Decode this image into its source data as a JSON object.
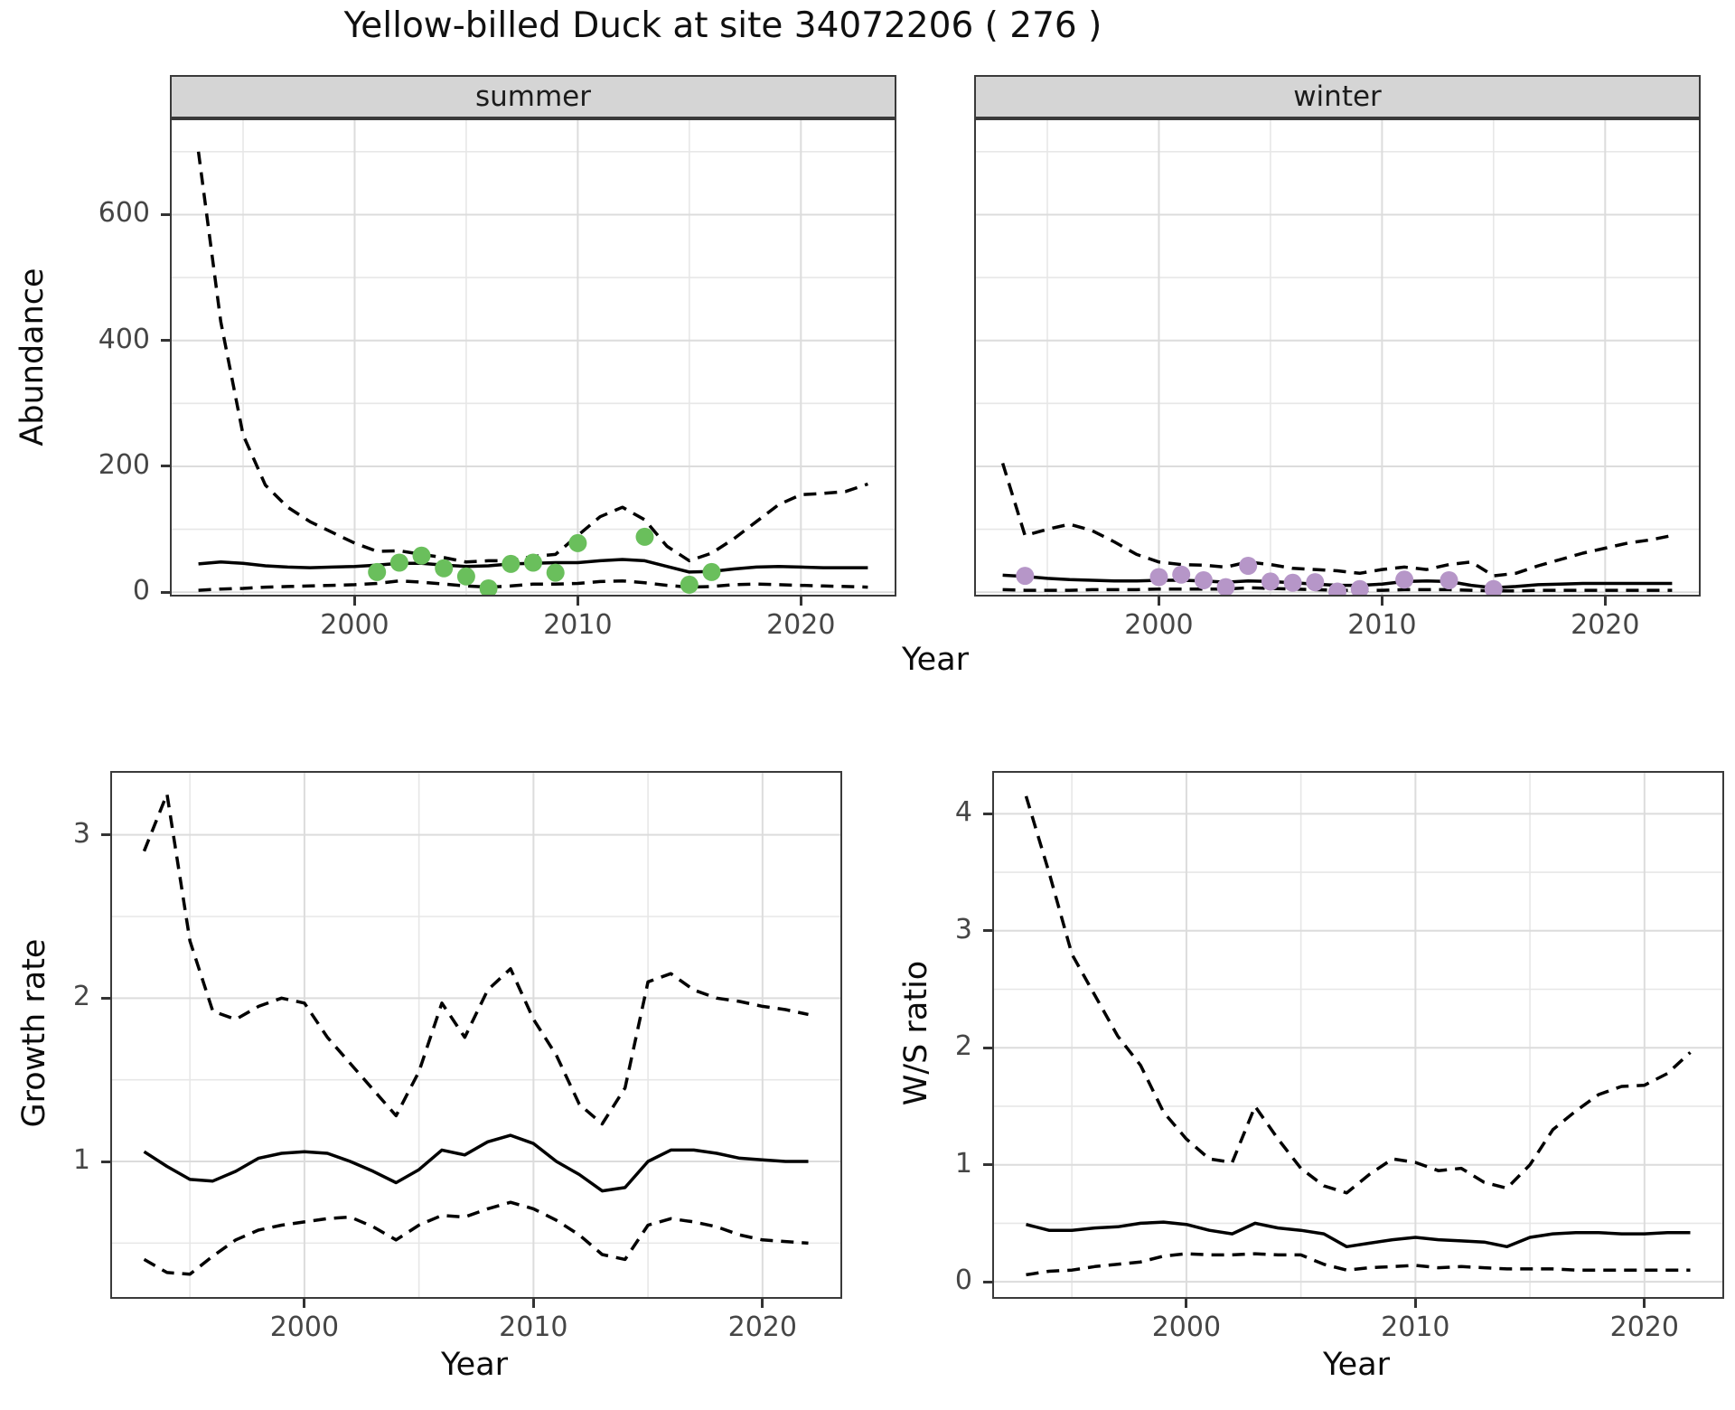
{
  "title": "Yellow-billed Duck at site 34072206 ( 276 )",
  "ui": {
    "facets": [
      "summer",
      "winter"
    ],
    "ylab_top": "Abundance",
    "xlab": "Year",
    "ylab_growth": "Growth rate",
    "ylab_ws": "W/S ratio"
  },
  "colors": {
    "line": "#000000",
    "summer_point": "#6abf5c",
    "winter_point": "#b696c8",
    "strip_bg": "#d5d5d5",
    "grid_major": "#dcdcdc",
    "grid_minor": "#e7e7e7",
    "tick_text": "#464646",
    "panel_border": "#3a3a3a"
  },
  "chart_data": [
    {
      "key": "summer",
      "type": "line",
      "panel_title": "summer",
      "xlabel": "Year",
      "ylabel": "Abundance",
      "x_domain": [
        1991.8,
        2024.2
      ],
      "y_domain": [
        -4,
        750
      ],
      "x_major_ticks": [
        2000,
        2010,
        2020
      ],
      "x_minor_ticks": [
        1995,
        2005,
        2015
      ],
      "y_major_ticks": [
        0,
        200,
        400,
        600
      ],
      "y_minor_ticks": [
        100,
        300,
        500,
        700
      ],
      "show_y_tick_labels": true,
      "x": [
        1993,
        1994,
        1995,
        1996,
        1997,
        1998,
        1999,
        2000,
        2001,
        2002,
        2003,
        2004,
        2005,
        2006,
        2007,
        2008,
        2009,
        2010,
        2011,
        2012,
        2013,
        2014,
        2015,
        2016,
        2017,
        2018,
        2019,
        2020,
        2021,
        2022,
        2023
      ],
      "series": [
        {
          "name": "upper_ci",
          "style": "dashed",
          "values": [
            700,
            430,
            250,
            170,
            135,
            112,
            95,
            78,
            65,
            66,
            60,
            55,
            48,
            50,
            50,
            57,
            60,
            90,
            120,
            135,
            115,
            73,
            50,
            62,
            85,
            112,
            139,
            155,
            157,
            160,
            172
          ]
        },
        {
          "name": "median",
          "style": "solid",
          "values": [
            45,
            48,
            46,
            42,
            40,
            39,
            40,
            41,
            43,
            46,
            46,
            43,
            41,
            42,
            45,
            46,
            47,
            47,
            50,
            52,
            50,
            41,
            32,
            33,
            37,
            40,
            41,
            40,
            39,
            39,
            39
          ]
        },
        {
          "name": "lower_ci",
          "style": "dashed",
          "values": [
            3,
            5,
            6,
            8,
            9,
            10,
            11,
            12,
            14,
            18,
            16,
            13,
            10,
            8,
            10,
            13,
            13,
            14,
            17,
            18,
            15,
            11,
            8,
            9,
            12,
            13,
            12,
            11,
            10,
            9,
            8
          ]
        }
      ],
      "points": {
        "name": "summer-observations",
        "color": "#6abf5c",
        "data": [
          [
            2001,
            32
          ],
          [
            2002,
            47
          ],
          [
            2003,
            58
          ],
          [
            2004,
            38
          ],
          [
            2005,
            25
          ],
          [
            2006,
            6
          ],
          [
            2007,
            45
          ],
          [
            2008,
            47
          ],
          [
            2009,
            31
          ],
          [
            2010,
            78
          ],
          [
            2013,
            88
          ],
          [
            2015,
            12
          ],
          [
            2016,
            32
          ]
        ]
      }
    },
    {
      "key": "winter",
      "type": "line",
      "panel_title": "winter",
      "xlabel": "Year",
      "ylabel": "Abundance",
      "x_domain": [
        1991.8,
        2024.2
      ],
      "y_domain": [
        -4,
        750
      ],
      "x_major_ticks": [
        2000,
        2010,
        2020
      ],
      "x_minor_ticks": [
        1995,
        2005,
        2015
      ],
      "y_major_ticks": [
        0,
        200,
        400,
        600
      ],
      "y_minor_ticks": [
        100,
        300,
        500,
        700
      ],
      "show_y_tick_labels": false,
      "x": [
        1993,
        1994,
        1995,
        1996,
        1997,
        1998,
        1999,
        2000,
        2001,
        2002,
        2003,
        2004,
        2005,
        2006,
        2007,
        2008,
        2009,
        2010,
        2011,
        2012,
        2013,
        2014,
        2015,
        2016,
        2017,
        2018,
        2019,
        2020,
        2021,
        2022,
        2023
      ],
      "series": [
        {
          "name": "upper_ci",
          "style": "dashed",
          "values": [
            205,
            90,
            100,
            108,
            98,
            80,
            60,
            48,
            44,
            43,
            40,
            48,
            44,
            38,
            36,
            34,
            30,
            36,
            40,
            36,
            44,
            48,
            26,
            30,
            42,
            52,
            62,
            70,
            78,
            83,
            90
          ]
        },
        {
          "name": "median",
          "style": "solid",
          "values": [
            27,
            25,
            22,
            20,
            19,
            18,
            18,
            19,
            19,
            18,
            16,
            18,
            17,
            15,
            13,
            11,
            11,
            13,
            17,
            18,
            17,
            11,
            7,
            9,
            12,
            13,
            14,
            14,
            14,
            14,
            14
          ]
        },
        {
          "name": "lower_ci",
          "style": "dashed",
          "values": [
            4,
            3,
            3,
            3,
            4,
            4,
            4,
            5,
            5,
            5,
            5,
            7,
            6,
            5,
            4,
            3,
            3,
            3,
            4,
            4,
            4,
            3,
            2,
            2,
            3,
            3,
            3,
            3,
            3,
            3,
            3
          ]
        }
      ],
      "points": {
        "name": "winter-observations",
        "color": "#b696c8",
        "data": [
          [
            1994,
            26
          ],
          [
            2000,
            24
          ],
          [
            2001,
            28
          ],
          [
            2002,
            19
          ],
          [
            2003,
            8
          ],
          [
            2004,
            42
          ],
          [
            2005,
            17
          ],
          [
            2006,
            15
          ],
          [
            2007,
            16
          ],
          [
            2008,
            1
          ],
          [
            2009,
            5
          ],
          [
            2011,
            20
          ],
          [
            2013,
            19
          ],
          [
            2015,
            5
          ]
        ]
      }
    },
    {
      "key": "growth",
      "type": "line",
      "panel_title": "",
      "xlabel": "Year",
      "ylabel": "Growth rate",
      "x_domain": [
        1991.6,
        2023.4
      ],
      "y_domain": [
        0.17,
        3.38
      ],
      "x_major_ticks": [
        2000,
        2010,
        2020
      ],
      "x_minor_ticks": [
        1995,
        2005,
        2015
      ],
      "y_major_ticks": [
        1,
        2,
        3
      ],
      "y_minor_ticks": [
        0.5,
        1.5,
        2.5
      ],
      "show_y_tick_labels": true,
      "x": [
        1993,
        1994,
        1995,
        1996,
        1997,
        1998,
        1999,
        2000,
        2001,
        2002,
        2003,
        2004,
        2005,
        2006,
        2007,
        2008,
        2009,
        2010,
        2011,
        2012,
        2013,
        2014,
        2015,
        2016,
        2017,
        2018,
        2019,
        2020,
        2021,
        2022
      ],
      "series": [
        {
          "name": "upper_ci",
          "style": "dashed",
          "values": [
            2.9,
            3.25,
            2.35,
            1.92,
            1.87,
            1.95,
            2.0,
            1.97,
            1.76,
            1.6,
            1.44,
            1.28,
            1.55,
            1.97,
            1.76,
            2.05,
            2.18,
            1.87,
            1.65,
            1.35,
            1.23,
            1.45,
            2.1,
            2.15,
            2.05,
            2.0,
            1.98,
            1.95,
            1.93,
            1.9
          ]
        },
        {
          "name": "median",
          "style": "solid",
          "values": [
            1.06,
            0.97,
            0.89,
            0.88,
            0.94,
            1.02,
            1.05,
            1.06,
            1.05,
            1.0,
            0.94,
            0.87,
            0.95,
            1.07,
            1.04,
            1.12,
            1.16,
            1.11,
            1.0,
            0.92,
            0.82,
            0.84,
            1.0,
            1.07,
            1.07,
            1.05,
            1.02,
            1.01,
            1.0,
            1.0
          ]
        },
        {
          "name": "lower_ci",
          "style": "dashed",
          "values": [
            0.4,
            0.32,
            0.31,
            0.42,
            0.52,
            0.58,
            0.61,
            0.63,
            0.65,
            0.66,
            0.6,
            0.52,
            0.61,
            0.67,
            0.66,
            0.71,
            0.75,
            0.71,
            0.64,
            0.55,
            0.43,
            0.4,
            0.61,
            0.65,
            0.63,
            0.6,
            0.55,
            0.52,
            0.51,
            0.5
          ]
        }
      ],
      "points": null
    },
    {
      "key": "ws",
      "type": "line",
      "panel_title": "",
      "xlabel": "Year",
      "ylabel": "W/S ratio",
      "x_domain": [
        1991.6,
        2023.4
      ],
      "y_domain": [
        -0.13,
        4.35
      ],
      "x_major_ticks": [
        2000,
        2010,
        2020
      ],
      "x_minor_ticks": [
        1995,
        2005,
        2015
      ],
      "y_major_ticks": [
        0,
        1,
        2,
        3,
        4
      ],
      "y_minor_ticks": [
        0.5,
        1.5,
        2.5,
        3.5
      ],
      "show_y_tick_labels": true,
      "x": [
        1993,
        1994,
        1995,
        1996,
        1997,
        1998,
        1999,
        2000,
        2001,
        2002,
        2003,
        2004,
        2005,
        2006,
        2007,
        2008,
        2009,
        2010,
        2011,
        2012,
        2013,
        2014,
        2015,
        2016,
        2017,
        2018,
        2019,
        2020,
        2021,
        2022
      ],
      "series": [
        {
          "name": "upper_ci",
          "style": "dashed",
          "values": [
            4.15,
            3.5,
            2.8,
            2.45,
            2.1,
            1.85,
            1.45,
            1.22,
            1.05,
            1.02,
            1.5,
            1.22,
            0.97,
            0.82,
            0.76,
            0.92,
            1.05,
            1.02,
            0.95,
            0.97,
            0.85,
            0.8,
            1.0,
            1.3,
            1.46,
            1.6,
            1.67,
            1.68,
            1.78,
            1.96
          ]
        },
        {
          "name": "median",
          "style": "solid",
          "values": [
            0.49,
            0.44,
            0.44,
            0.46,
            0.47,
            0.5,
            0.51,
            0.49,
            0.44,
            0.41,
            0.5,
            0.46,
            0.44,
            0.41,
            0.3,
            0.33,
            0.36,
            0.38,
            0.36,
            0.35,
            0.34,
            0.3,
            0.38,
            0.41,
            0.42,
            0.42,
            0.41,
            0.41,
            0.42,
            0.42
          ]
        },
        {
          "name": "lower_ci",
          "style": "dashed",
          "values": [
            0.06,
            0.09,
            0.1,
            0.13,
            0.15,
            0.17,
            0.22,
            0.24,
            0.23,
            0.23,
            0.24,
            0.23,
            0.23,
            0.15,
            0.1,
            0.12,
            0.13,
            0.14,
            0.12,
            0.13,
            0.12,
            0.11,
            0.11,
            0.11,
            0.1,
            0.1,
            0.1,
            0.1,
            0.1,
            0.1
          ]
        }
      ],
      "points": null
    }
  ]
}
